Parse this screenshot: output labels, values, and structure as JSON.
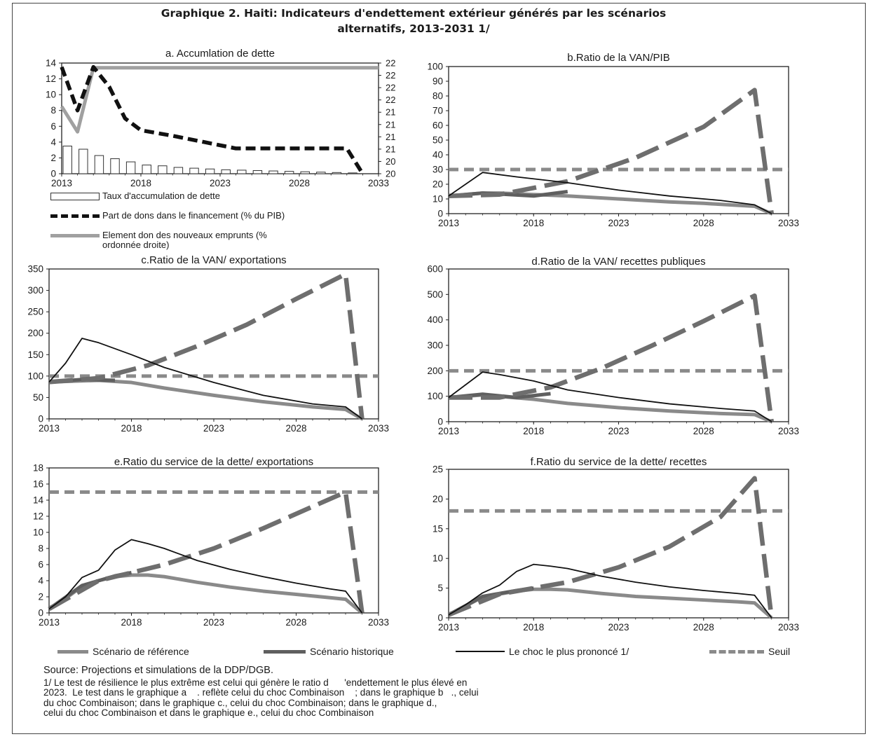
{
  "header": {
    "title_line1": "Graphique 2. Haiti: Indicateurs d'endettement extérieur générés par les scénarios",
    "title_line2": "alternatifs, 2013-2031 1/"
  },
  "colors": {
    "reference": "#8a8a8a",
    "historique": "#5f5f5f",
    "choc": "#111111",
    "seuil": "#8a8a8a",
    "bars": "#ffffff",
    "bar_border": "#333333"
  },
  "panel_a_legend": {
    "bars": "Taux d'accumulation de dette",
    "dons": "Part de dons dans le financement (% du PIB)",
    "element_line1": "Element don des nouveaux emprunts (%",
    "element_line2": "ordonnée droite)"
  },
  "legend": {
    "reference": "Scénario de référence",
    "historique": "Scénario historique",
    "choc": "Le choc le plus prononcé  1/",
    "seuil": "Seuil"
  },
  "notes": {
    "source": "Source: Projections et simulations de la DDP/DGB.",
    "line1": "1/ Le test de résilience le plus extrême est celui qui génère le ratio d      'endettement le plus élevé en",
    "line2": "2023.  Le test dans le graphique a    . reflète celui du choc Combinaison    ; dans le graphique b   ., celui",
    "line3": "du choc Combinaison; dans le graphique c., celui du choc Combinaison; dans le graphique d.,",
    "line4": "celui du choc Combinaison et dans le graphique e., celui du choc Combinaison"
  },
  "chart_data": [
    {
      "id": "a",
      "type": "bar",
      "title": "a. Accumlation  de dette",
      "x_ticks": [
        "2013",
        "2018",
        "2023",
        "2028",
        "2033"
      ],
      "ylim": [
        0,
        14
      ],
      "y_ticks": [
        "0",
        "2",
        "4",
        "6",
        "8",
        "10",
        "12",
        "14"
      ],
      "y2_ticks": [
        "20",
        "20",
        "21",
        "21",
        "21",
        "21",
        "22",
        "22",
        "22",
        "22"
      ],
      "years": [
        2013,
        2014,
        2015,
        2016,
        2017,
        2018,
        2019,
        2020,
        2021,
        2022,
        2023,
        2024,
        2025,
        2026,
        2027,
        2028,
        2029,
        2030,
        2031,
        2032
      ],
      "series": [
        {
          "name": "Taux d'accumulation de dette",
          "kind": "bar",
          "values": [
            3.5,
            3.1,
            2.3,
            1.9,
            1.5,
            1.1,
            1.0,
            0.8,
            0.7,
            0.6,
            0.5,
            0.45,
            0.4,
            0.35,
            0.3,
            0.25,
            0.2,
            0.15,
            0.1,
            0
          ]
        },
        {
          "name": "Part de dons dans le financement (% du PIB)",
          "kind": "line",
          "x": [
            2013,
            2014,
            2015,
            2016,
            2017,
            2018,
            2020,
            2022,
            2024,
            2026,
            2028,
            2030,
            2031,
            2032
          ],
          "values": [
            13.5,
            8.0,
            13.5,
            11.0,
            7.0,
            5.5,
            4.8,
            4.0,
            3.2,
            3.2,
            3.2,
            3.2,
            3.2,
            0
          ]
        },
        {
          "name": "Element don des nouveaux emprunts (% ordonnée droite)",
          "kind": "line",
          "axis": "right",
          "x": [
            2013,
            2014,
            2015,
            2020,
            2025,
            2030,
            2033
          ],
          "values_left_scale": [
            8.5,
            5.3,
            13.4,
            13.4,
            13.4,
            13.4,
            13.4
          ]
        }
      ]
    },
    {
      "id": "b",
      "type": "line",
      "title": "b.Ratio de la VAN/PIB",
      "x_ticks": [
        "2013",
        "2018",
        "2023",
        "2028",
        "2033"
      ],
      "ylim": [
        0,
        100
      ],
      "y_ticks": [
        "0",
        "10",
        "20",
        "30",
        "40",
        "50",
        "60",
        "70",
        "80",
        "90",
        "100"
      ],
      "series": [
        {
          "name": "Scénario de référence",
          "x": [
            2013,
            2015,
            2016,
            2018,
            2020,
            2023,
            2026,
            2028,
            2031,
            2032
          ],
          "values": [
            12,
            14,
            14,
            13,
            12,
            10,
            8,
            7,
            5,
            0
          ]
        },
        {
          "name": "Scénario historique",
          "x": [
            2013,
            2015,
            2018,
            2020
          ],
          "values": [
            12,
            14,
            12,
            15
          ]
        },
        {
          "name": "Le choc le plus prononcé  1/",
          "x": [
            2013,
            2015,
            2017,
            2020,
            2023,
            2026,
            2029,
            2031,
            2032
          ],
          "values": [
            12,
            28,
            25,
            21,
            16,
            12,
            9,
            6,
            0
          ]
        },
        {
          "name": "Seuil",
          "x": [
            2013,
            2033
          ],
          "values": [
            30,
            30
          ]
        },
        {
          "name": "extreme",
          "x": [
            2013,
            2016,
            2020,
            2024,
            2028,
            2031,
            2032
          ],
          "values": [
            12,
            13,
            22,
            38,
            59,
            84,
            0
          ]
        }
      ]
    },
    {
      "id": "c",
      "type": "line",
      "title": "c.Ratio de la VAN/ exportations",
      "x_ticks": [
        "2013",
        "2018",
        "2023",
        "2028",
        "2033"
      ],
      "ylim": [
        0,
        350
      ],
      "y_ticks": [
        "0",
        "50",
        "100",
        "150",
        "200",
        "250",
        "300",
        "350"
      ],
      "series": [
        {
          "name": "Scénario de référence",
          "x": [
            2013,
            2016,
            2018,
            2020,
            2023,
            2026,
            2029,
            2031,
            2032
          ],
          "values": [
            86,
            90,
            85,
            72,
            55,
            40,
            28,
            22,
            0
          ]
        },
        {
          "name": "Scénario historique",
          "x": [
            2013,
            2015,
            2017
          ],
          "values": [
            86,
            92,
            90
          ]
        },
        {
          "name": "Le choc le plus prononcé  1/",
          "x": [
            2013,
            2014,
            2015,
            2016,
            2018,
            2020,
            2023,
            2026,
            2029,
            2031,
            2032
          ],
          "values": [
            86,
            130,
            188,
            178,
            150,
            120,
            85,
            55,
            35,
            28,
            0
          ]
        },
        {
          "name": "Seuil",
          "x": [
            2013,
            2033
          ],
          "values": [
            100,
            100
          ]
        },
        {
          "name": "extreme",
          "x": [
            2013,
            2016,
            2019,
            2022,
            2025,
            2028,
            2031,
            2032
          ],
          "values": [
            86,
            95,
            125,
            170,
            220,
            280,
            338,
            0
          ]
        }
      ]
    },
    {
      "id": "d",
      "type": "line",
      "title": "d.Ratio de la VAN/ recettes publiques",
      "x_ticks": [
        "2013",
        "2018",
        "2023",
        "2028",
        "2033"
      ],
      "ylim": [
        0,
        600
      ],
      "y_ticks": [
        "0",
        "100",
        "200",
        "300",
        "400",
        "500",
        "600"
      ],
      "series": [
        {
          "name": "Scénario de référence",
          "x": [
            2013,
            2015,
            2018,
            2020,
            2023,
            2026,
            2029,
            2031,
            2032
          ],
          "values": [
            95,
            105,
            88,
            72,
            55,
            42,
            32,
            28,
            0
          ]
        },
        {
          "name": "Scénario historique",
          "x": [
            2013,
            2015,
            2017,
            2019
          ],
          "values": [
            95,
            108,
            95,
            110
          ]
        },
        {
          "name": "Le choc le plus prononcé  1/",
          "x": [
            2013,
            2015,
            2016,
            2018,
            2020,
            2023,
            2026,
            2029,
            2031,
            2032
          ],
          "values": [
            95,
            195,
            185,
            160,
            125,
            95,
            70,
            52,
            42,
            0
          ]
        },
        {
          "name": "Seuil",
          "x": [
            2013,
            2033
          ],
          "values": [
            200,
            200
          ]
        },
        {
          "name": "extreme",
          "x": [
            2013,
            2016,
            2019,
            2022,
            2025,
            2028,
            2031,
            2032
          ],
          "values": [
            95,
            95,
            135,
            210,
            300,
            395,
            495,
            0
          ]
        }
      ]
    },
    {
      "id": "e",
      "type": "line",
      "title": "e.Ratio du service de la dette/ exportations",
      "x_ticks": [
        "2013",
        "2018",
        "2023",
        "2028",
        "2033"
      ],
      "ylim": [
        0,
        18
      ],
      "y_ticks": [
        "0",
        "2",
        "4",
        "6",
        "8",
        "10",
        "12",
        "14",
        "16",
        "18"
      ],
      "series": [
        {
          "name": "Scénario de référence",
          "x": [
            2013,
            2014,
            2015,
            2016,
            2017,
            2018,
            2019,
            2020,
            2022,
            2024,
            2026,
            2028,
            2030,
            2031,
            2032
          ],
          "values": [
            0.5,
            1.8,
            3.3,
            4.0,
            4.5,
            4.7,
            4.7,
            4.5,
            3.8,
            3.2,
            2.7,
            2.3,
            1.9,
            1.7,
            0
          ]
        },
        {
          "name": "Scénario historique",
          "x": [
            2013,
            2015,
            2017,
            2018
          ],
          "values": [
            0.5,
            3.4,
            4.6,
            5.0
          ]
        },
        {
          "name": "Le choc le plus prononcé  1/",
          "x": [
            2013,
            2014,
            2015,
            2016,
            2017,
            2018,
            2019,
            2020,
            2022,
            2024,
            2026,
            2028,
            2030,
            2031,
            2032
          ],
          "values": [
            0.5,
            2.0,
            4.4,
            5.3,
            7.8,
            9.1,
            8.6,
            8.0,
            6.5,
            5.4,
            4.5,
            3.7,
            3.0,
            2.7,
            0
          ]
        },
        {
          "name": "Seuil",
          "x": [
            2013,
            2033
          ],
          "values": [
            15,
            15
          ]
        },
        {
          "name": "extreme",
          "x": [
            2013,
            2016,
            2018,
            2020,
            2023,
            2026,
            2029,
            2031,
            2032
          ],
          "values": [
            0.5,
            4.0,
            5.0,
            6.0,
            8.0,
            10.5,
            13.2,
            15,
            0
          ]
        }
      ]
    },
    {
      "id": "f",
      "type": "line",
      "title": "f.Ratio du service de la dette/ recettes",
      "x_ticks": [
        "2013",
        "2018",
        "2023",
        "2028",
        "2033"
      ],
      "ylim": [
        0,
        25
      ],
      "y_ticks": [
        "0",
        "5",
        "10",
        "15",
        "20",
        "25"
      ],
      "series": [
        {
          "name": "Scénario de référence",
          "x": [
            2013,
            2014,
            2015,
            2016,
            2017,
            2018,
            2019,
            2020,
            2022,
            2024,
            2026,
            2028,
            2030,
            2031,
            2032
          ],
          "values": [
            0.5,
            2.0,
            3.5,
            4.0,
            4.5,
            4.8,
            4.8,
            4.7,
            4.1,
            3.6,
            3.3,
            3.0,
            2.7,
            2.5,
            0
          ]
        },
        {
          "name": "Scénario historique",
          "x": [
            2013,
            2015,
            2017,
            2018
          ],
          "values": [
            0.5,
            3.6,
            4.6,
            5.0
          ]
        },
        {
          "name": "Le choc le plus prononcé  1/",
          "x": [
            2013,
            2014,
            2015,
            2016,
            2017,
            2018,
            2019,
            2020,
            2022,
            2024,
            2026,
            2028,
            2030,
            2031,
            2032
          ],
          "values": [
            0.5,
            2.2,
            4.2,
            5.5,
            7.8,
            9.0,
            8.7,
            8.3,
            7.0,
            6.0,
            5.2,
            4.6,
            4.1,
            3.8,
            0
          ]
        },
        {
          "name": "Seuil",
          "x": [
            2013,
            2033
          ],
          "values": [
            18,
            18
          ]
        },
        {
          "name": "extreme",
          "x": [
            2013,
            2016,
            2018,
            2020,
            2023,
            2026,
            2029,
            2031,
            2032
          ],
          "values": [
            0.5,
            4.0,
            5.0,
            6.0,
            8.5,
            12.0,
            17.0,
            23.5,
            0
          ]
        }
      ]
    }
  ]
}
